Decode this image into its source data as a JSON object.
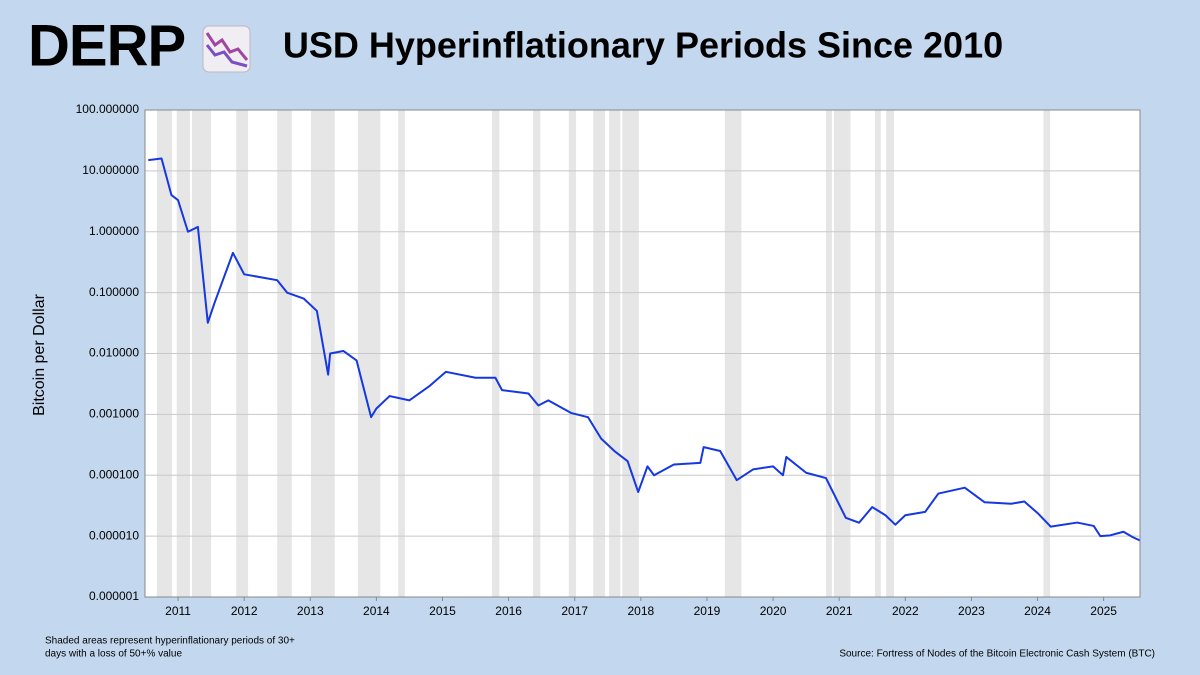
{
  "logo": "DERP",
  "chart_data": {
    "type": "line",
    "title": "USD Hyperinflationary Periods Since 2010",
    "y_label": "Bitcoin per Dollar",
    "footnote": [
      "Shaded areas represent hyperinflationary periods of 30+",
      "days with a loss of 50+% value"
    ],
    "source": "Source: Fortress of Nodes of the Bitcoin Electronic Cash System (BTC)",
    "log_y": true,
    "grid": true,
    "color": "#1538e0",
    "shade_color": "#e6e6e6",
    "xlim": [
      2010.5,
      2025.55
    ],
    "xticks": [
      2011,
      2012,
      2013,
      2014,
      2015,
      2016,
      2017,
      2018,
      2019,
      2020,
      2021,
      2022,
      2023,
      2024,
      2025
    ],
    "ylim": [
      1e-06,
      100
    ],
    "yticks": [
      {
        "value": 1e-06,
        "label": "0.000001"
      },
      {
        "value": 1e-05,
        "label": "0.000010"
      },
      {
        "value": 0.0001,
        "label": "0.000100"
      },
      {
        "value": 0.001,
        "label": "0.001000"
      },
      {
        "value": 0.01,
        "label": "0.010000"
      },
      {
        "value": 0.1,
        "label": "0.100000"
      },
      {
        "value": 1,
        "label": "1.000000"
      },
      {
        "value": 10,
        "label": "10.000000"
      },
      {
        "value": 100,
        "label": "100.000000"
      }
    ],
    "shaded_periods": [
      [
        2010.68,
        2010.91
      ],
      [
        2010.98,
        2011.18
      ],
      [
        2011.21,
        2011.5
      ],
      [
        2011.88,
        2012.06
      ],
      [
        2012.5,
        2012.72
      ],
      [
        2013.01,
        2013.37
      ],
      [
        2013.72,
        2014.06
      ],
      [
        2014.33,
        2014.43
      ],
      [
        2015.75,
        2015.86
      ],
      [
        2016.37,
        2016.48
      ],
      [
        2016.91,
        2017.02
      ],
      [
        2017.28,
        2017.46
      ],
      [
        2017.52,
        2017.69
      ],
      [
        2017.72,
        2017.97
      ],
      [
        2019.27,
        2019.52
      ],
      [
        2020.8,
        2020.89
      ],
      [
        2020.92,
        2021.17
      ],
      [
        2021.54,
        2021.63
      ],
      [
        2021.71,
        2021.83
      ],
      [
        2024.09,
        2024.19
      ]
    ],
    "x": [
      2010.55,
      2010.75,
      2010.9,
      2011.0,
      2011.15,
      2011.3,
      2011.45,
      2011.55,
      2011.83,
      2012.0,
      2012.5,
      2012.65,
      2012.9,
      2013.1,
      2013.27,
      2013.3,
      2013.5,
      2013.7,
      2013.92,
      2014.0,
      2014.2,
      2014.5,
      2014.8,
      2015.05,
      2015.5,
      2015.8,
      2015.9,
      2016.3,
      2016.45,
      2016.6,
      2016.95,
      2017.2,
      2017.4,
      2017.6,
      2017.8,
      2017.96,
      2018.1,
      2018.2,
      2018.5,
      2018.9,
      2018.95,
      2019.2,
      2019.45,
      2019.7,
      2020.0,
      2020.15,
      2020.2,
      2020.5,
      2020.8,
      2021.0,
      2021.1,
      2021.3,
      2021.5,
      2021.7,
      2021.85,
      2022.0,
      2022.3,
      2022.5,
      2022.9,
      2023.2,
      2023.6,
      2023.8,
      2024.0,
      2024.2,
      2024.6,
      2024.85,
      2024.95,
      2025.1,
      2025.3,
      2025.45,
      2025.55
    ],
    "values": [
      15,
      16,
      4,
      3.3,
      1,
      1.2,
      0.032,
      0.067,
      0.45,
      0.2,
      0.16,
      0.1,
      0.08,
      0.05,
      0.0045,
      0.01,
      0.011,
      0.0077,
      0.0009,
      0.00125,
      0.002,
      0.0017,
      0.0029,
      0.005,
      0.004,
      0.004,
      0.0025,
      0.0022,
      0.0014,
      0.0017,
      0.00105,
      0.0009,
      0.0004,
      0.00025,
      0.00017,
      5.3e-05,
      0.00014,
      0.0001,
      0.00015,
      0.00016,
      0.00029,
      0.00025,
      8.3e-05,
      0.000125,
      0.00014,
      0.0001,
      0.0002,
      0.00011,
      9e-05,
      3.3e-05,
      2e-05,
      1.66e-05,
      3e-05,
      2.2e-05,
      1.54e-05,
      2.2e-05,
      2.5e-05,
      5e-05,
      6.25e-05,
      3.6e-05,
      3.4e-05,
      3.7e-05,
      2.4e-05,
      1.43e-05,
      1.67e-05,
      1.47e-05,
      1e-05,
      1.03e-05,
      1.18e-05,
      9.5e-06,
      8.5e-06
    ]
  }
}
